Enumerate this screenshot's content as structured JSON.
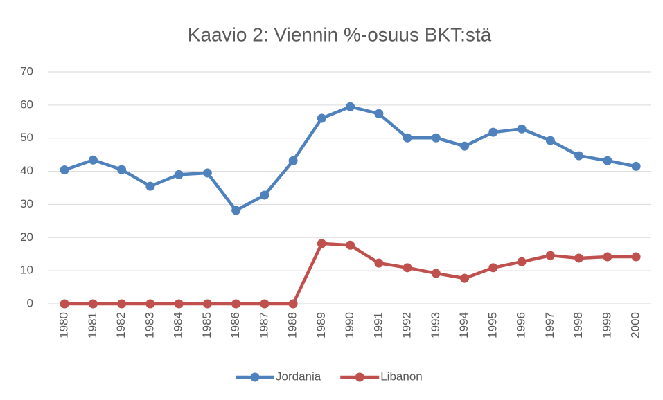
{
  "chart_data": {
    "type": "line",
    "title": "Kaavio 2: Viennin %-osuus BKT:stä",
    "categories": [
      "1980",
      "1981",
      "1982",
      "1983",
      "1984",
      "1985",
      "1986",
      "1987",
      "1988",
      "1989",
      "1990",
      "1991",
      "1992",
      "1993",
      "1994",
      "1995",
      "1996",
      "1997",
      "1998",
      "1999",
      "2000"
    ],
    "series": [
      {
        "name": "Jordania",
        "color": "#4f81bd",
        "values": [
          40.4,
          43.4,
          40.5,
          35.5,
          39.0,
          39.5,
          28.2,
          32.8,
          43.2,
          56.0,
          59.5,
          57.4,
          50.1,
          50.1,
          47.6,
          51.8,
          52.8,
          49.3,
          44.7,
          43.2,
          41.5
        ]
      },
      {
        "name": "Libanon",
        "color": "#c0504d",
        "values": [
          0,
          0,
          0,
          0,
          0,
          0,
          0,
          0,
          0,
          18.2,
          17.7,
          12.3,
          10.9,
          9.2,
          7.7,
          10.9,
          12.7,
          14.6,
          13.8,
          14.2,
          14.2
        ]
      }
    ],
    "ylim": [
      0,
      70
    ],
    "yticks": [
      0,
      10,
      20,
      30,
      40,
      50,
      60,
      70
    ],
    "grid": true,
    "legend": "bottom"
  }
}
